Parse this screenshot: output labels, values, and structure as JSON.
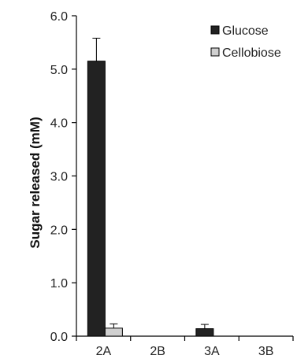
{
  "chart_data": {
    "type": "bar",
    "title": "",
    "xlabel": "",
    "ylabel": "Sugar released (mM)",
    "categories": [
      "2A",
      "2B",
      "3A",
      "3B"
    ],
    "ylim": [
      0,
      6
    ],
    "yticks": [
      "0.0",
      "1.0",
      "2.0",
      "3.0",
      "4.0",
      "5.0",
      "6.0"
    ],
    "grid": false,
    "legend_position": "top-right",
    "series": [
      {
        "name": "Glucose",
        "color": "#222222",
        "values": [
          5.15,
          0,
          0.14,
          0
        ],
        "errors": [
          0.43,
          0,
          0.08,
          0
        ]
      },
      {
        "name": "Cellobiose",
        "color": "#d0d0d0",
        "values": [
          0.15,
          0,
          0,
          0
        ],
        "errors": [
          0.08,
          0,
          0,
          0
        ]
      }
    ]
  }
}
